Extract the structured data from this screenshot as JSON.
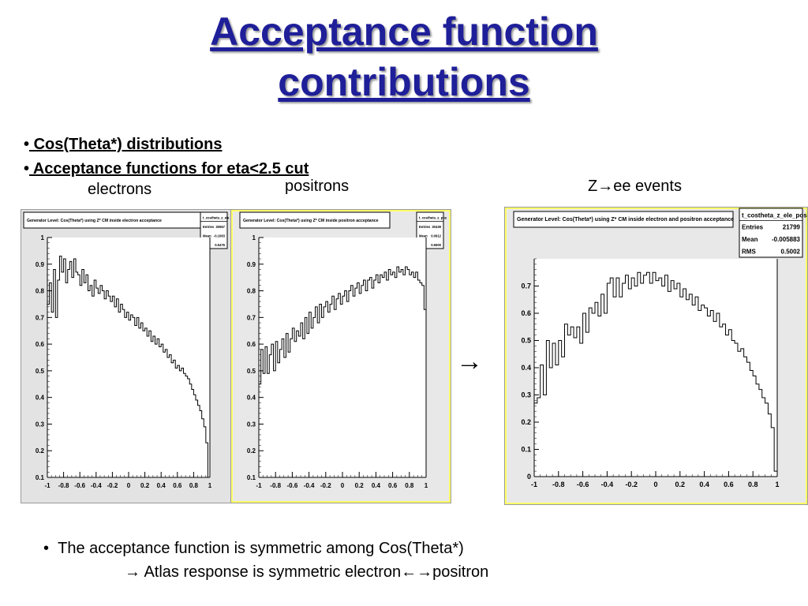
{
  "title": {
    "line1": "Acceptance function",
    "line2": "contributions"
  },
  "bullets": [
    {
      "marker": "•",
      "text": " Cos(Theta*) distributions "
    },
    {
      "marker": "•",
      "text": " Acceptance functions for eta<2.5 cut "
    }
  ],
  "labels": {
    "electrons": "electrons",
    "positrons": "positrons",
    "z_events": "Z→ee events"
  },
  "arrow": "→",
  "bottom": {
    "line1": "The acceptance function is symmetric among Cos(Theta*)",
    "line2": "→ Atlas response is symmetric electron←→positron"
  },
  "colors": {
    "title": "#1f1f99",
    "frame_bg": "#e6e6e6",
    "highlight": "#ffff66"
  },
  "chart_data": [
    {
      "type": "line",
      "title": "Generator Level: Cos(Theta*) using Z* CM inside electron acceptance",
      "stats": {
        "name": "t_costheta_z_ele",
        "entries_label": "Entries",
        "entries": "30567",
        "mean_label": "Mean",
        "mean": "-0.1063",
        "rms_label": "RMS",
        "rms": "0.5476"
      },
      "xlim": [
        -1,
        1
      ],
      "ylim": [
        0.1,
        1.0
      ],
      "xticks": [
        "-1",
        "-0.8",
        "-0.6",
        "-0.4",
        "-0.2",
        "0",
        "0.2",
        "0.4",
        "0.6",
        "0.8",
        "1"
      ],
      "yticks": [
        "0.1",
        "0.2",
        "0.3",
        "0.4",
        "0.5",
        "0.6",
        "0.7",
        "0.8",
        "0.9",
        "1"
      ],
      "x": [
        -1.0,
        -0.975,
        -0.95,
        -0.925,
        -0.9,
        -0.875,
        -0.85,
        -0.825,
        -0.8,
        -0.775,
        -0.75,
        -0.725,
        -0.7,
        -0.675,
        -0.65,
        -0.625,
        -0.6,
        -0.575,
        -0.55,
        -0.525,
        -0.5,
        -0.475,
        -0.45,
        -0.425,
        -0.4,
        -0.375,
        -0.35,
        -0.325,
        -0.3,
        -0.275,
        -0.25,
        -0.225,
        -0.2,
        -0.175,
        -0.15,
        -0.125,
        -0.1,
        -0.075,
        -0.05,
        -0.025,
        0.0,
        0.025,
        0.05,
        0.075,
        0.1,
        0.125,
        0.15,
        0.175,
        0.2,
        0.225,
        0.25,
        0.275,
        0.3,
        0.325,
        0.35,
        0.375,
        0.4,
        0.425,
        0.45,
        0.475,
        0.5,
        0.525,
        0.55,
        0.575,
        0.6,
        0.625,
        0.65,
        0.675,
        0.7,
        0.725,
        0.75,
        0.775,
        0.8,
        0.825,
        0.85,
        0.875,
        0.9,
        0.925,
        0.95,
        0.975
      ],
      "values": [
        0.75,
        0.83,
        0.72,
        0.88,
        0.7,
        0.84,
        0.93,
        0.87,
        0.92,
        0.83,
        0.88,
        0.91,
        0.85,
        0.92,
        0.87,
        0.86,
        0.82,
        0.88,
        0.83,
        0.86,
        0.8,
        0.82,
        0.78,
        0.84,
        0.81,
        0.79,
        0.82,
        0.8,
        0.77,
        0.8,
        0.78,
        0.76,
        0.78,
        0.74,
        0.77,
        0.72,
        0.75,
        0.73,
        0.7,
        0.72,
        0.69,
        0.71,
        0.7,
        0.67,
        0.7,
        0.66,
        0.68,
        0.65,
        0.66,
        0.63,
        0.65,
        0.61,
        0.63,
        0.6,
        0.62,
        0.59,
        0.6,
        0.57,
        0.58,
        0.55,
        0.56,
        0.53,
        0.54,
        0.51,
        0.52,
        0.5,
        0.51,
        0.49,
        0.48,
        0.47,
        0.45,
        0.43,
        0.41,
        0.39,
        0.37,
        0.35,
        0.32,
        0.29,
        0.23,
        0.1
      ]
    },
    {
      "type": "line",
      "title": "Generator Level: Cos(Theta*) using Z* CM inside positron acceptance",
      "stats": {
        "name": "t_costheta_z_pos",
        "entries_label": "Entries",
        "entries": "30439",
        "mean_label": "Mean",
        "mean": "0.0912",
        "rms_label": "RMS",
        "rms": "0.5500"
      },
      "xlim": [
        -1,
        1
      ],
      "ylim": [
        0.1,
        1.0
      ],
      "xticks": [
        "-1",
        "-0.8",
        "-0.6",
        "-0.4",
        "-0.2",
        "0",
        "0.2",
        "0.4",
        "0.6",
        "0.8",
        "1"
      ],
      "yticks": [
        "0.1",
        "0.2",
        "0.3",
        "0.4",
        "0.5",
        "0.6",
        "0.7",
        "0.8",
        "0.9",
        "1"
      ],
      "x": [
        -1.0,
        -0.975,
        -0.95,
        -0.925,
        -0.9,
        -0.875,
        -0.85,
        -0.825,
        -0.8,
        -0.775,
        -0.75,
        -0.725,
        -0.7,
        -0.675,
        -0.65,
        -0.625,
        -0.6,
        -0.575,
        -0.55,
        -0.525,
        -0.5,
        -0.475,
        -0.45,
        -0.425,
        -0.4,
        -0.375,
        -0.35,
        -0.325,
        -0.3,
        -0.275,
        -0.25,
        -0.225,
        -0.2,
        -0.175,
        -0.15,
        -0.125,
        -0.1,
        -0.075,
        -0.05,
        -0.025,
        0.0,
        0.025,
        0.05,
        0.075,
        0.1,
        0.125,
        0.15,
        0.175,
        0.2,
        0.225,
        0.25,
        0.275,
        0.3,
        0.325,
        0.35,
        0.375,
        0.4,
        0.425,
        0.45,
        0.475,
        0.5,
        0.525,
        0.55,
        0.575,
        0.6,
        0.625,
        0.65,
        0.675,
        0.7,
        0.725,
        0.75,
        0.775,
        0.8,
        0.825,
        0.85,
        0.875,
        0.9,
        0.925,
        0.95,
        0.975
      ],
      "values": [
        0.45,
        0.58,
        0.49,
        0.59,
        0.49,
        0.56,
        0.6,
        0.5,
        0.61,
        0.53,
        0.58,
        0.62,
        0.55,
        0.64,
        0.57,
        0.62,
        0.66,
        0.61,
        0.65,
        0.63,
        0.68,
        0.62,
        0.7,
        0.64,
        0.72,
        0.66,
        0.7,
        0.74,
        0.68,
        0.75,
        0.7,
        0.74,
        0.76,
        0.72,
        0.75,
        0.78,
        0.73,
        0.77,
        0.79,
        0.75,
        0.78,
        0.8,
        0.76,
        0.8,
        0.82,
        0.78,
        0.81,
        0.83,
        0.79,
        0.82,
        0.84,
        0.8,
        0.84,
        0.85,
        0.81,
        0.84,
        0.86,
        0.83,
        0.86,
        0.85,
        0.87,
        0.84,
        0.88,
        0.86,
        0.87,
        0.85,
        0.89,
        0.87,
        0.88,
        0.86,
        0.89,
        0.88,
        0.86,
        0.87,
        0.85,
        0.87,
        0.84,
        0.83,
        0.82,
        0.73
      ]
    },
    {
      "type": "line",
      "title": "Generator Level: Cos(Theta*) using Z* CM inside electron and positron acceptance",
      "stats": {
        "name": "t_costheta_z_ele_pos",
        "entries_label": "Entries",
        "entries": "21799",
        "mean_label": "Mean",
        "mean": "-0.005883",
        "rms_label": "RMS",
        "rms": "0.5002"
      },
      "xlim": [
        -1,
        1
      ],
      "ylim": [
        0,
        0.8
      ],
      "xticks": [
        "-1",
        "-0.8",
        "-0.6",
        "-0.4",
        "-0.2",
        "0",
        "0.2",
        "0.4",
        "0.6",
        "0.8",
        "1"
      ],
      "yticks": [
        "0",
        "0.1",
        "0.2",
        "0.3",
        "0.4",
        "0.5",
        "0.6",
        "0.7"
      ],
      "x": [
        -1.0,
        -0.975,
        -0.95,
        -0.925,
        -0.9,
        -0.875,
        -0.85,
        -0.825,
        -0.8,
        -0.775,
        -0.75,
        -0.725,
        -0.7,
        -0.675,
        -0.65,
        -0.625,
        -0.6,
        -0.575,
        -0.55,
        -0.525,
        -0.5,
        -0.475,
        -0.45,
        -0.425,
        -0.4,
        -0.375,
        -0.35,
        -0.325,
        -0.3,
        -0.275,
        -0.25,
        -0.225,
        -0.2,
        -0.175,
        -0.15,
        -0.125,
        -0.1,
        -0.075,
        -0.05,
        -0.025,
        0.0,
        0.025,
        0.05,
        0.075,
        0.1,
        0.125,
        0.15,
        0.175,
        0.2,
        0.225,
        0.25,
        0.275,
        0.3,
        0.325,
        0.35,
        0.375,
        0.4,
        0.425,
        0.45,
        0.475,
        0.5,
        0.525,
        0.55,
        0.575,
        0.6,
        0.625,
        0.65,
        0.675,
        0.7,
        0.725,
        0.75,
        0.775,
        0.8,
        0.825,
        0.85,
        0.875,
        0.9,
        0.925,
        0.95,
        0.975
      ],
      "values": [
        0.27,
        0.29,
        0.41,
        0.3,
        0.5,
        0.4,
        0.49,
        0.41,
        0.5,
        0.44,
        0.56,
        0.52,
        0.55,
        0.51,
        0.55,
        0.49,
        0.6,
        0.53,
        0.62,
        0.6,
        0.64,
        0.59,
        0.67,
        0.6,
        0.71,
        0.73,
        0.66,
        0.73,
        0.66,
        0.71,
        0.74,
        0.69,
        0.73,
        0.7,
        0.75,
        0.71,
        0.74,
        0.75,
        0.71,
        0.75,
        0.72,
        0.73,
        0.7,
        0.74,
        0.68,
        0.72,
        0.69,
        0.71,
        0.66,
        0.69,
        0.65,
        0.67,
        0.63,
        0.66,
        0.61,
        0.63,
        0.62,
        0.59,
        0.61,
        0.57,
        0.6,
        0.55,
        0.56,
        0.52,
        0.54,
        0.5,
        0.49,
        0.46,
        0.47,
        0.44,
        0.42,
        0.39,
        0.37,
        0.34,
        0.32,
        0.29,
        0.27,
        0.23,
        0.18,
        0.02
      ]
    }
  ]
}
